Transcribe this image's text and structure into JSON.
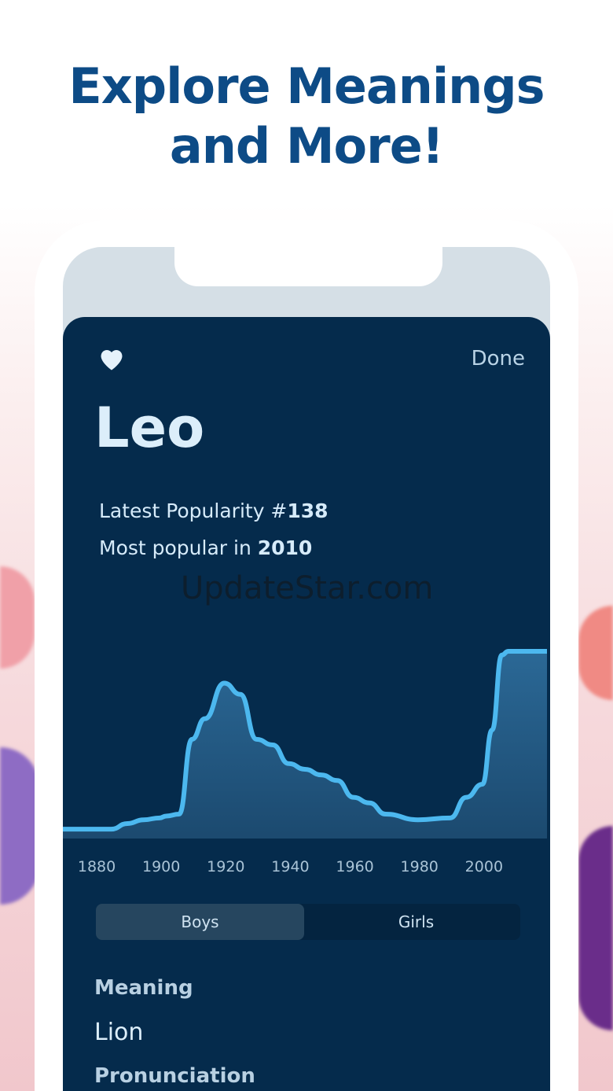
{
  "headline": {
    "line1": "Explore Meanings",
    "line2": "and More!"
  },
  "card": {
    "favorite_icon": "heart-icon",
    "done_label": "Done",
    "name": "Leo",
    "latest_popularity_label": "Latest Popularity #",
    "latest_popularity_rank": "138",
    "most_popular_label": "Most popular in ",
    "most_popular_year": "2010",
    "watermark": "UpdateStar.com",
    "tabs": [
      {
        "label": "Boys",
        "selected": true
      },
      {
        "label": "Girls",
        "selected": false
      }
    ],
    "meaning_label": "Meaning",
    "meaning_value": "Lion",
    "pronunciation_label": "Pronunciation"
  },
  "colors": {
    "card_bg": "#052b4c",
    "line": "#4cb8ef",
    "headline": "#0d4b86"
  },
  "chart_data": {
    "type": "area",
    "xlim": [
      1870,
      2020
    ],
    "x": [
      1870,
      1880,
      1885,
      1890,
      1895,
      1900,
      1902,
      1906,
      1910,
      1914,
      1920,
      1925,
      1930,
      1935,
      1940,
      1945,
      1950,
      1955,
      1960,
      1965,
      1970,
      1980,
      1990,
      1995,
      2000,
      2003,
      2006,
      2008,
      2020
    ],
    "y": [
      5,
      5,
      5,
      8,
      10,
      11,
      12,
      13,
      53,
      64,
      83,
      77,
      53,
      50,
      40,
      37,
      34,
      31,
      22,
      19,
      13,
      10,
      11,
      22,
      29,
      58,
      98,
      100,
      100
    ],
    "ylim": [
      0,
      100
    ],
    "x_ticks": [
      "1880",
      "1900",
      "1920",
      "1940",
      "1960",
      "1980",
      "2000"
    ],
    "grid": false
  }
}
